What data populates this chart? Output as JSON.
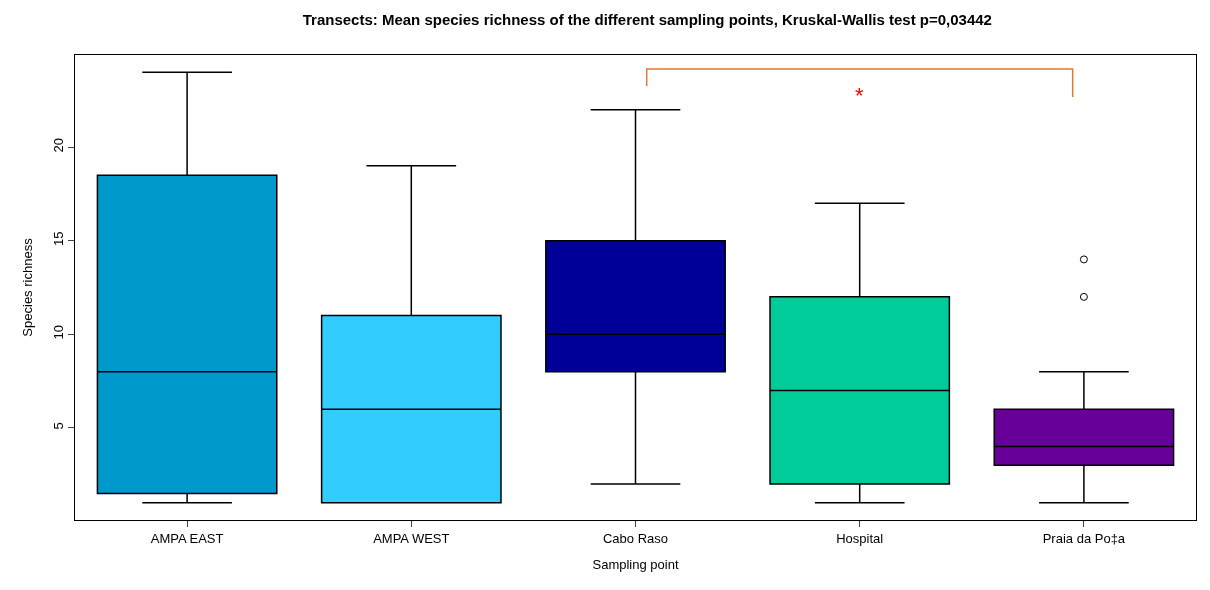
{
  "chart_data": {
    "type": "box",
    "title": "Transects: Mean species richness of the different sampling points, Kruskal-Wallis test p=0,03442",
    "xlabel": "Sampling point",
    "ylabel": "Species richness",
    "categories": [
      "AMPA EAST",
      "AMPA WEST",
      "Cabo Raso",
      "Hospital",
      "Praia da Po‡a"
    ],
    "colors": [
      "#0099cc",
      "#33ccff",
      "#000099",
      "#00cc99",
      "#660099"
    ],
    "boxes": [
      {
        "low": 1,
        "q1": 1.5,
        "median": 8,
        "q3": 18.5,
        "high": 24
      },
      {
        "low": 1,
        "q1": 1,
        "median": 6,
        "q3": 11,
        "high": 19
      },
      {
        "low": 2,
        "q1": 8,
        "median": 10,
        "q3": 15,
        "high": 22
      },
      {
        "low": 1,
        "q1": 2,
        "median": 7,
        "q3": 12,
        "high": 17
      },
      {
        "low": 1,
        "q1": 3,
        "median": 4,
        "q3": 6,
        "high": 8,
        "outliers": [
          12,
          14
        ]
      }
    ],
    "annotations": [
      "*"
    ],
    "ylim": [
      0.08,
      24.92
    ],
    "yticks": [
      5,
      10,
      15,
      20
    ]
  }
}
